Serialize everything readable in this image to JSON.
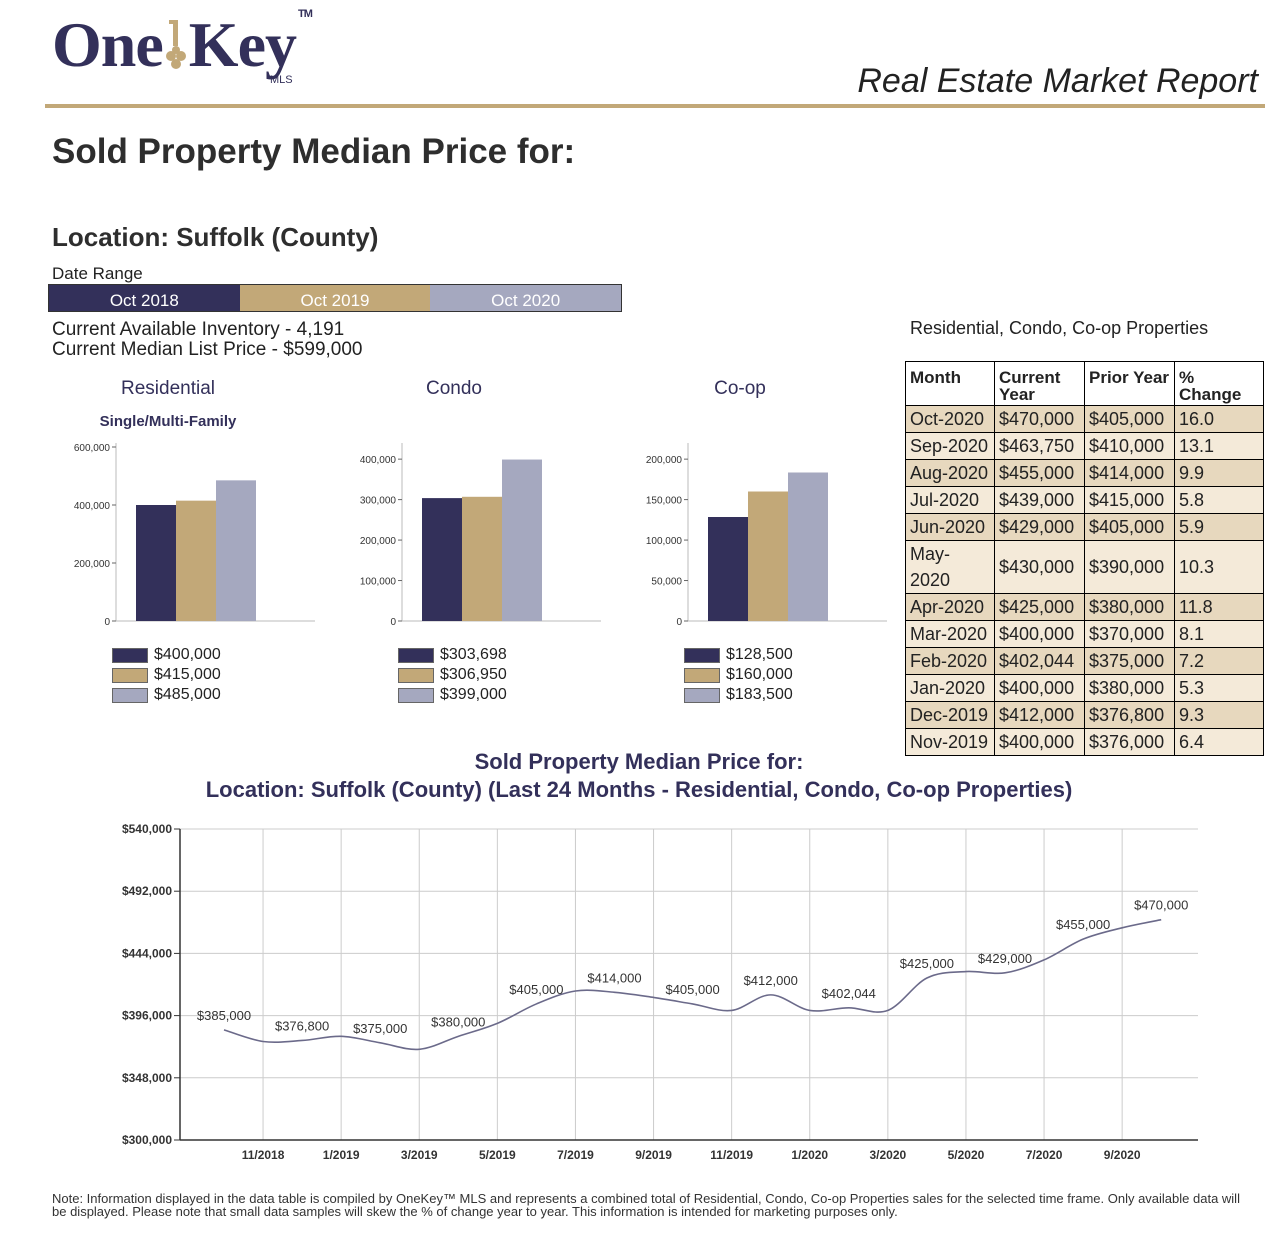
{
  "header": {
    "logo_text_one": "One",
    "logo_text_key": "Key",
    "logo_tm": "TM",
    "logo_mls": "MLS",
    "report_title": "Real Estate Market Report"
  },
  "page": {
    "title": "Sold Property Median Price for:",
    "location": "Location: Suffolk (County)",
    "date_range_label": "Date Range",
    "date_ranges": [
      "Oct 2018",
      "Oct 2019",
      "Oct 2020"
    ],
    "inventory": "Current Available Inventory - 4,191",
    "median_list": "Current Median List Price - $599,000"
  },
  "colors": {
    "navy": "#33305a",
    "gold": "#c2a878",
    "silver": "#a5a8bf"
  },
  "table": {
    "caption": "Residential, Condo, Co-op Properties",
    "headers": [
      "Month",
      "Current Year",
      "Prior Year",
      "% Change"
    ],
    "rows": [
      [
        "Oct-2020",
        "$470,000",
        "$405,000",
        "16.0"
      ],
      [
        "Sep-2020",
        "$463,750",
        "$410,000",
        "13.1"
      ],
      [
        "Aug-2020",
        "$455,000",
        "$414,000",
        "9.9"
      ],
      [
        "Jul-2020",
        "$439,000",
        "$415,000",
        "5.8"
      ],
      [
        "Jun-2020",
        "$429,000",
        "$405,000",
        "5.9"
      ],
      [
        "May-2020",
        "$430,000",
        "$390,000",
        "10.3"
      ],
      [
        "Apr-2020",
        "$425,000",
        "$380,000",
        "11.8"
      ],
      [
        "Mar-2020",
        "$400,000",
        "$370,000",
        "8.1"
      ],
      [
        "Feb-2020",
        "$402,044",
        "$375,000",
        "7.2"
      ],
      [
        "Jan-2020",
        "$400,000",
        "$380,000",
        "5.3"
      ],
      [
        "Dec-2019",
        "$412,000",
        "$376,800",
        "9.3"
      ],
      [
        "Nov-2019",
        "$400,000",
        "$376,000",
        "6.4"
      ]
    ]
  },
  "line_title": {
    "line1": "Sold Property Median Price for:",
    "line2": "Location: Suffolk (County) (Last 24 Months - Residential, Condo, Co-op Properties)"
  },
  "note": "Note: Information displayed in the data table is compiled by OneKey™ MLS and represents a combined total of Residential, Condo, Co-op Properties sales for the selected time frame. Only available data will be displayed. Please note that small data samples will skew the % of change year to year. This information is intended for marketing purposes only.",
  "chart_data": [
    {
      "type": "bar",
      "title": "Residential",
      "subtitle": "Single/Multi-Family",
      "categories": [
        "Oct 2018",
        "Oct 2019",
        "Oct 2020"
      ],
      "values": [
        400000,
        415000,
        485000
      ],
      "value_labels": [
        "$400,000",
        "$415,000",
        "$485,000"
      ],
      "yticks": [
        0,
        200000,
        400000,
        600000
      ],
      "ytick_labels": [
        "0",
        "200,000",
        "400,000",
        "600,000"
      ],
      "ylim": [
        0,
        600000
      ]
    },
    {
      "type": "bar",
      "title": "Condo",
      "subtitle": "",
      "categories": [
        "Oct 2018",
        "Oct 2019",
        "Oct 2020"
      ],
      "values": [
        303698,
        306950,
        399000
      ],
      "value_labels": [
        "$303,698",
        "$306,950",
        "$399,000"
      ],
      "yticks": [
        0,
        100000,
        200000,
        300000,
        400000
      ],
      "ytick_labels": [
        "0",
        "100,000",
        "200,000",
        "300,000",
        "400,000"
      ],
      "ylim": [
        0,
        430000
      ]
    },
    {
      "type": "bar",
      "title": "Co-op",
      "subtitle": "",
      "categories": [
        "Oct 2018",
        "Oct 2019",
        "Oct 2020"
      ],
      "values": [
        128500,
        160000,
        183500
      ],
      "value_labels": [
        "$128,500",
        "$160,000",
        "$183,500"
      ],
      "yticks": [
        0,
        50000,
        100000,
        150000,
        200000
      ],
      "ytick_labels": [
        "0",
        "50,000",
        "100,000",
        "150,000",
        "200,000"
      ],
      "ylim": [
        0,
        215000
      ]
    },
    {
      "type": "line",
      "title": "Sold Property Median Price for: Location: Suffolk (County) (Last 24 Months - Residential, Condo, Co-op Properties)",
      "ylim": [
        300000,
        540000
      ],
      "yticks": [
        300000,
        348000,
        396000,
        444000,
        492000,
        540000
      ],
      "ytick_labels": [
        "$300,000",
        "$348,000",
        "$396,000",
        "$444,000",
        "$492,000",
        "$540,000"
      ],
      "xtick_labels": [
        "11/2018",
        "1/2019",
        "3/2019",
        "5/2019",
        "7/2019",
        "9/2019",
        "11/2019",
        "1/2020",
        "3/2020",
        "5/2020",
        "7/2020",
        "9/2020"
      ],
      "x": [
        "10/2018",
        "11/2018",
        "12/2018",
        "1/2019",
        "2/2019",
        "3/2019",
        "4/2019",
        "5/2019",
        "6/2019",
        "7/2019",
        "8/2019",
        "9/2019",
        "10/2019",
        "11/2019",
        "12/2019",
        "1/2020",
        "2/2020",
        "3/2020",
        "4/2020",
        "5/2020",
        "6/2020",
        "7/2020",
        "8/2020",
        "9/2020",
        "10/2020"
      ],
      "values": [
        385000,
        376000,
        376800,
        380000,
        375000,
        370000,
        380000,
        390000,
        405000,
        415000,
        414000,
        410000,
        405000,
        400000,
        412000,
        400000,
        402044,
        400000,
        425000,
        430000,
        429000,
        439000,
        455000,
        463750,
        470000
      ],
      "labels": [
        {
          "index": 0,
          "text": "$385,000"
        },
        {
          "index": 2,
          "text": "$376,800"
        },
        {
          "index": 4,
          "text": "$375,000"
        },
        {
          "index": 6,
          "text": "$380,000"
        },
        {
          "index": 8,
          "text": "$405,000"
        },
        {
          "index": 10,
          "text": "$414,000"
        },
        {
          "index": 12,
          "text": "$405,000"
        },
        {
          "index": 14,
          "text": "$412,000"
        },
        {
          "index": 16,
          "text": "$402,044"
        },
        {
          "index": 18,
          "text": "$425,000"
        },
        {
          "index": 20,
          "text": "$429,000"
        },
        {
          "index": 22,
          "text": "$455,000"
        },
        {
          "index": 24,
          "text": "$470,000"
        }
      ]
    }
  ]
}
